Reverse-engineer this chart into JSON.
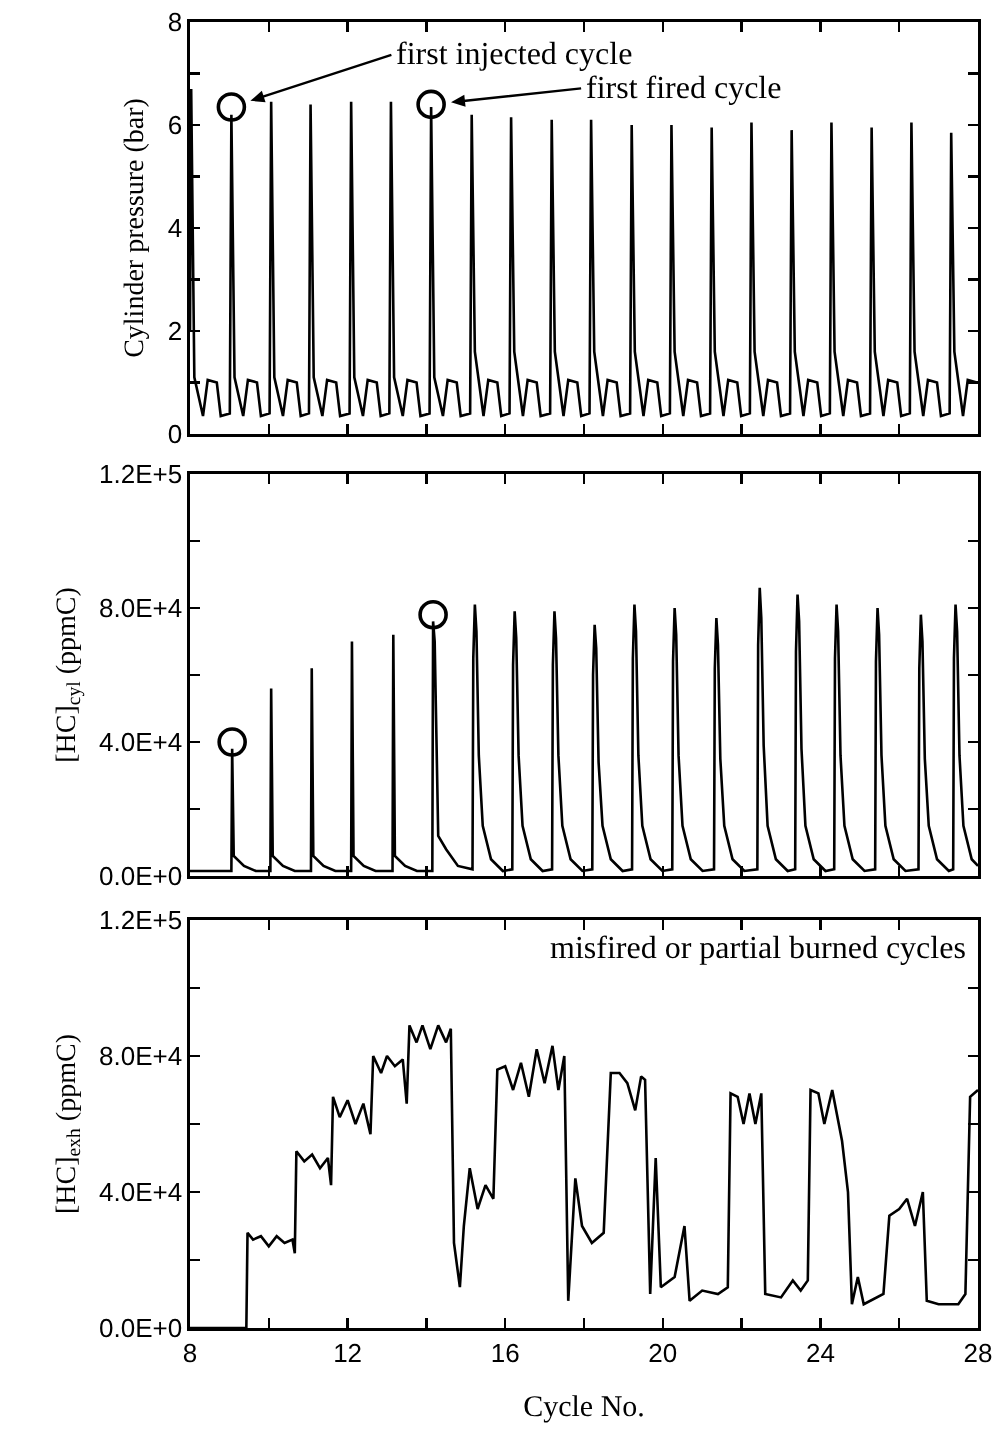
{
  "chart_data": [
    {
      "type": "line",
      "ylabel": "Cylinder pressure (bar)",
      "xlim": [
        8,
        28
      ],
      "ylim": [
        0,
        8
      ],
      "tick_labels": "y",
      "grid": false,
      "xticks": [
        {
          "value": 8,
          "label": null
        },
        {
          "value": 10,
          "label": null
        },
        {
          "value": 12,
          "label": null
        },
        {
          "value": 14,
          "label": null
        },
        {
          "value": 16,
          "label": null
        },
        {
          "value": 18,
          "label": null
        },
        {
          "value": 20,
          "label": null
        },
        {
          "value": 22,
          "label": null
        },
        {
          "value": 24,
          "label": null
        },
        {
          "value": 26,
          "label": null
        },
        {
          "value": 28,
          "label": null
        }
      ],
      "yticks": [
        0,
        {
          "value": 1,
          "label": null
        },
        2,
        {
          "value": 3,
          "label": null
        },
        4,
        {
          "value": 5,
          "label": null
        },
        6,
        {
          "value": 7,
          "label": null
        },
        8
      ],
      "annotations": [
        {
          "text": "first injected cycle",
          "x": 9.05,
          "y": 6.35
        },
        {
          "text": "first fired cycle",
          "x": 14.12,
          "y": 6.4
        }
      ],
      "series": [
        {
          "type": "line",
          "color": "#000000",
          "marker": "none",
          "line_style": "solid",
          "x": [
            8.0,
            8.03,
            8.11,
            8.33,
            8.45,
            8.68,
            8.78,
            9.01,
            9.05,
            9.13,
            9.35,
            9.47,
            9.7,
            9.8,
            10.02,
            10.06,
            10.14,
            10.36,
            10.48,
            10.71,
            10.81,
            11.02,
            11.06,
            11.14,
            11.36,
            11.48,
            11.71,
            11.81,
            12.05,
            12.09,
            12.17,
            12.39,
            12.51,
            12.74,
            12.84,
            13.06,
            13.1,
            13.18,
            13.4,
            13.52,
            13.75,
            13.85,
            14.08,
            14.12,
            14.2,
            14.42,
            14.54,
            14.77,
            14.87,
            15.11,
            15.15,
            15.23,
            15.45,
            15.57,
            15.8,
            15.9,
            16.11,
            16.15,
            16.23,
            16.45,
            16.57,
            16.8,
            16.9,
            17.14,
            17.18,
            17.26,
            17.48,
            17.6,
            17.83,
            17.93,
            18.14,
            18.18,
            18.26,
            18.48,
            18.6,
            18.83,
            18.93,
            19.17,
            19.21,
            19.29,
            19.51,
            19.63,
            19.86,
            19.96,
            20.18,
            20.22,
            20.3,
            20.52,
            20.64,
            20.87,
            20.97,
            21.2,
            21.24,
            21.32,
            21.54,
            21.66,
            21.89,
            21.99,
            22.21,
            22.25,
            22.33,
            22.55,
            22.67,
            22.9,
            23.0,
            23.23,
            23.27,
            23.35,
            23.57,
            23.69,
            23.92,
            24.02,
            24.24,
            24.28,
            24.36,
            24.58,
            24.7,
            24.93,
            25.03,
            25.26,
            25.3,
            25.38,
            25.6,
            25.72,
            25.95,
            26.05,
            26.27,
            26.31,
            26.39,
            26.61,
            26.73,
            26.96,
            27.06,
            27.28,
            27.32,
            27.4,
            27.62,
            27.74,
            27.97,
            28.0
          ],
          "values": [
            2.0,
            6.7,
            1.1,
            0.35,
            1.05,
            1.0,
            0.35,
            0.4,
            6.2,
            1.1,
            0.35,
            1.05,
            1.0,
            0.35,
            0.4,
            6.45,
            1.1,
            0.35,
            1.05,
            1.0,
            0.35,
            0.4,
            6.4,
            1.1,
            0.35,
            1.05,
            1.0,
            0.35,
            0.4,
            6.45,
            1.1,
            0.35,
            1.05,
            1.0,
            0.35,
            0.4,
            6.45,
            1.1,
            0.35,
            1.05,
            1.0,
            0.35,
            0.4,
            6.35,
            1.1,
            0.35,
            1.05,
            1.0,
            0.35,
            0.4,
            6.2,
            1.6,
            0.35,
            1.05,
            1.0,
            0.35,
            0.4,
            6.15,
            1.6,
            0.35,
            1.05,
            1.0,
            0.35,
            0.4,
            6.1,
            1.6,
            0.35,
            1.05,
            1.0,
            0.35,
            0.4,
            6.1,
            1.6,
            0.35,
            1.05,
            1.0,
            0.35,
            0.4,
            6.0,
            1.6,
            0.35,
            1.05,
            1.0,
            0.35,
            0.4,
            6.0,
            1.6,
            0.35,
            1.05,
            1.0,
            0.35,
            0.4,
            5.95,
            1.6,
            0.35,
            1.05,
            1.0,
            0.35,
            0.4,
            6.05,
            1.6,
            0.35,
            1.05,
            1.0,
            0.35,
            0.4,
            5.9,
            1.6,
            0.35,
            1.05,
            1.0,
            0.35,
            0.4,
            6.05,
            1.6,
            0.35,
            1.05,
            1.0,
            0.35,
            0.4,
            5.95,
            1.6,
            0.35,
            1.05,
            1.0,
            0.35,
            0.4,
            6.05,
            1.6,
            0.35,
            1.05,
            1.0,
            0.35,
            0.4,
            5.85,
            1.6,
            0.35,
            1.05,
            1.0,
            1.0
          ]
        },
        {
          "type": "scatter",
          "color": "#000000",
          "marker": "circle",
          "x": [
            9.05,
            14.12
          ],
          "values": [
            6.35,
            6.4
          ]
        }
      ]
    },
    {
      "type": "line",
      "ylabel": "[HC]$_{cyl}$ (ppmC)",
      "xlim": [
        8,
        28
      ],
      "ylim": [
        0,
        120000
      ],
      "tick_labels": "y",
      "grid": false,
      "xticks": [
        {
          "value": 8,
          "label": null
        },
        {
          "value": 10,
          "label": null
        },
        {
          "value": 12,
          "label": null
        },
        {
          "value": 14,
          "label": null
        },
        {
          "value": 16,
          "label": null
        },
        {
          "value": 18,
          "label": null
        },
        {
          "value": 20,
          "label": null
        },
        {
          "value": 22,
          "label": null
        },
        {
          "value": 24,
          "label": null
        },
        {
          "value": 26,
          "label": null
        },
        {
          "value": 28,
          "label": null
        }
      ],
      "yticks": [
        {
          "value": 0,
          "label": "0.0E+0"
        },
        {
          "value": 20000,
          "label": null
        },
        {
          "value": 40000,
          "label": "4.0E+4"
        },
        {
          "value": 60000,
          "label": null
        },
        {
          "value": 80000,
          "label": "8.0E+4"
        },
        {
          "value": 100000,
          "label": null
        },
        {
          "value": 120000,
          "label": "1.2E+5"
        }
      ],
      "series": [
        {
          "type": "line",
          "color": "#000000",
          "marker": "none",
          "line_style": "solid",
          "x": [
            8.0,
            9.05,
            9.07,
            9.11,
            9.37,
            9.67,
            10.04,
            10.06,
            10.1,
            10.36,
            10.66,
            11.07,
            11.09,
            11.13,
            11.39,
            11.69,
            12.09,
            12.11,
            12.15,
            12.41,
            12.71,
            13.14,
            13.16,
            13.2,
            13.46,
            13.76,
            14.15,
            14.17,
            14.21,
            14.3,
            14.5,
            14.8,
            15.17,
            15.19,
            15.23,
            15.27,
            15.33,
            15.43,
            15.64,
            15.94,
            16.18,
            16.2,
            16.24,
            16.28,
            16.34,
            16.44,
            16.65,
            16.95,
            17.19,
            17.21,
            17.25,
            17.29,
            17.35,
            17.45,
            17.66,
            17.96,
            18.21,
            18.23,
            18.27,
            18.31,
            18.37,
            18.47,
            18.68,
            18.98,
            19.22,
            19.24,
            19.28,
            19.32,
            19.38,
            19.48,
            19.69,
            19.99,
            20.24,
            20.26,
            20.3,
            20.34,
            20.4,
            20.5,
            20.71,
            21.01,
            21.3,
            21.32,
            21.36,
            21.4,
            21.46,
            21.56,
            21.77,
            22.07,
            22.4,
            22.42,
            22.46,
            22.5,
            22.56,
            22.66,
            22.87,
            23.17,
            23.36,
            23.38,
            23.42,
            23.46,
            23.52,
            23.62,
            23.83,
            24.13,
            24.35,
            24.37,
            24.41,
            24.45,
            24.51,
            24.61,
            24.82,
            25.12,
            25.39,
            25.41,
            25.45,
            25.49,
            25.55,
            25.65,
            25.86,
            26.16,
            26.49,
            26.51,
            26.55,
            26.59,
            26.65,
            26.75,
            26.96,
            27.26,
            27.37,
            27.39,
            27.43,
            27.47,
            27.53,
            27.63,
            27.84,
            28.0
          ],
          "values": [
            1500,
            1500,
            38000,
            6000,
            3000,
            1500,
            1500,
            56000,
            6000,
            3000,
            1500,
            1500,
            62000,
            6000,
            3000,
            1500,
            1500,
            70000,
            6000,
            3000,
            1500,
            1500,
            72000,
            6000,
            3000,
            1500,
            1500,
            76000,
            70000,
            12000,
            8000,
            3000,
            2000,
            65000,
            81000,
            73000,
            36000,
            15000,
            5000,
            1500,
            2000,
            63000,
            79000,
            71000,
            36000,
            15000,
            5000,
            1500,
            2000,
            63000,
            79000,
            71000,
            36000,
            15000,
            5000,
            1500,
            2000,
            60000,
            75000,
            68000,
            34000,
            15000,
            5000,
            1500,
            2000,
            65000,
            81000,
            73000,
            36000,
            15000,
            5000,
            1500,
            2000,
            64000,
            80000,
            72000,
            36000,
            15000,
            5000,
            1500,
            2000,
            62000,
            77000,
            69000,
            35000,
            15000,
            5000,
            1500,
            2000,
            69000,
            86000,
            77000,
            39000,
            15000,
            5000,
            1500,
            2000,
            67000,
            84000,
            76000,
            38000,
            15000,
            5000,
            1500,
            2000,
            65000,
            81000,
            73000,
            36000,
            15000,
            5000,
            1500,
            2000,
            64000,
            80000,
            72000,
            36000,
            15000,
            5000,
            1500,
            2000,
            62000,
            78000,
            70000,
            35000,
            15000,
            5000,
            1500,
            2000,
            65000,
            81000,
            73000,
            36000,
            15000,
            5000,
            3000
          ]
        },
        {
          "type": "scatter",
          "color": "#000000",
          "marker": "circle",
          "x": [
            9.07,
            14.17
          ],
          "values": [
            40000,
            78000
          ]
        }
      ]
    },
    {
      "type": "line",
      "xlabel": "Cycle No.",
      "ylabel": "[HC]$_{exh}$ (ppmC)",
      "xlim": [
        8,
        28
      ],
      "ylim": [
        0,
        120000
      ],
      "grid": false,
      "xticks": [
        8,
        {
          "value": 10,
          "label": null
        },
        12,
        {
          "value": 14,
          "label": null
        },
        16,
        {
          "value": 18,
          "label": null
        },
        20,
        {
          "value": 22,
          "label": null
        },
        24,
        {
          "value": 26,
          "label": null
        },
        28
      ],
      "yticks": [
        {
          "value": 0,
          "label": "0.0E+0"
        },
        {
          "value": 20000,
          "label": null
        },
        {
          "value": 40000,
          "label": "4.0E+4"
        },
        {
          "value": 60000,
          "label": null
        },
        {
          "value": 80000,
          "label": "8.0E+4"
        },
        {
          "value": 100000,
          "label": null
        },
        {
          "value": 120000,
          "label": "1.2E+5"
        }
      ],
      "annotations": [
        "misfired or partial burned cycles"
      ],
      "series": [
        {
          "type": "line",
          "color": "#000000",
          "marker": "none",
          "line_style": "solid",
          "x": [
            8.0,
            9.43,
            9.46,
            9.6,
            9.8,
            10.0,
            10.2,
            10.4,
            10.6,
            10.66,
            10.7,
            10.9,
            11.1,
            11.3,
            11.5,
            11.58,
            11.63,
            11.8,
            12.0,
            12.2,
            12.4,
            12.58,
            12.65,
            12.85,
            13.0,
            13.2,
            13.4,
            13.5,
            13.57,
            13.75,
            13.9,
            14.1,
            14.3,
            14.5,
            14.62,
            14.7,
            14.85,
            14.95,
            15.1,
            15.3,
            15.5,
            15.7,
            15.8,
            16.0,
            16.2,
            16.4,
            16.6,
            16.8,
            17.0,
            17.2,
            17.35,
            17.5,
            17.6,
            17.78,
            17.95,
            18.2,
            18.5,
            18.68,
            18.9,
            19.1,
            19.3,
            19.45,
            19.55,
            19.68,
            19.82,
            19.95,
            20.3,
            20.55,
            20.68,
            21.0,
            21.4,
            21.65,
            21.72,
            21.9,
            22.05,
            22.2,
            22.35,
            22.5,
            22.6,
            23.0,
            23.3,
            23.5,
            23.68,
            23.75,
            23.95,
            24.1,
            24.3,
            24.55,
            24.7,
            24.8,
            24.95,
            25.1,
            25.6,
            25.75,
            26.0,
            26.2,
            26.4,
            26.6,
            26.7,
            27.0,
            27.5,
            27.68,
            27.8,
            28.0
          ],
          "values": [
            0,
            0,
            28000,
            26000,
            27000,
            24000,
            27000,
            25000,
            26000,
            22000,
            52000,
            49000,
            51000,
            47000,
            50000,
            42000,
            68000,
            62000,
            67000,
            60000,
            66000,
            57000,
            80000,
            75000,
            80000,
            77000,
            79000,
            66000,
            89000,
            84000,
            89000,
            82000,
            89000,
            84000,
            88000,
            25000,
            12000,
            30000,
            47000,
            35000,
            42000,
            38000,
            76000,
            77000,
            70000,
            78000,
            68000,
            82000,
            72000,
            83000,
            70000,
            80000,
            8000,
            44000,
            30000,
            25000,
            28000,
            75000,
            75000,
            72000,
            64000,
            74000,
            73000,
            10000,
            50000,
            12000,
            15000,
            30000,
            8000,
            11000,
            10000,
            12000,
            69000,
            68000,
            60000,
            69000,
            60000,
            69000,
            10000,
            9000,
            14000,
            11000,
            14000,
            70000,
            69000,
            60000,
            70000,
            55000,
            40000,
            7000,
            15000,
            7000,
            10000,
            33000,
            35000,
            38000,
            30000,
            40000,
            8000,
            7000,
            7000,
            10000,
            68000,
            70000
          ]
        }
      ]
    }
  ]
}
